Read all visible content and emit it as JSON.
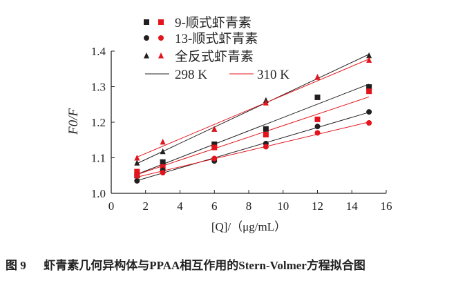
{
  "chart_data": {
    "type": "scatter",
    "title": "",
    "xlabel": "[Q]/（μg/mL）",
    "ylabel": "F0/F",
    "xlim": [
      0,
      16
    ],
    "ylim": [
      1.0,
      1.4
    ],
    "xticks": [
      "0",
      "2",
      "4",
      "6",
      "8",
      "10",
      "12",
      "14",
      "16"
    ],
    "yticks": [
      "1.0",
      "1.1",
      "1.2",
      "1.3",
      "1.4"
    ],
    "grid": false,
    "legend_position": "top-left",
    "x": [
      1.5,
      3,
      6,
      9,
      12,
      15
    ],
    "series": [
      {
        "name": "9-顺式虾青素",
        "temperature": "298 K",
        "marker": "square",
        "color": "#231f20",
        "values": [
          1.05,
          1.088,
          1.138,
          1.181,
          1.27,
          1.299
        ]
      },
      {
        "name": "9-顺式虾青素",
        "temperature": "310 K",
        "marker": "square",
        "color": "#e3141b",
        "values": [
          1.061,
          1.074,
          1.129,
          1.165,
          1.208,
          1.287
        ]
      },
      {
        "name": "13-顺式虾青素",
        "temperature": "298 K",
        "marker": "circle",
        "color": "#231f20",
        "values": [
          1.035,
          1.065,
          1.091,
          1.14,
          1.188,
          1.229
        ]
      },
      {
        "name": "13-顺式虾青素",
        "temperature": "310 K",
        "marker": "circle",
        "color": "#e3141b",
        "values": [
          1.049,
          1.058,
          1.098,
          1.131,
          1.17,
          1.198
        ]
      },
      {
        "name": "全反式虾青素",
        "temperature": "298 K",
        "marker": "triangle",
        "color": "#231f20",
        "values": [
          1.085,
          1.117,
          1.18,
          1.261,
          1.326,
          1.387
        ]
      },
      {
        "name": "全反式虾青素",
        "temperature": "310 K",
        "marker": "triangle",
        "color": "#e3141b",
        "values": [
          1.099,
          1.144,
          1.18,
          1.254,
          1.326,
          1.374
        ]
      }
    ],
    "legend": {
      "markers": [
        "9-顺式虾青素",
        "13-顺式虾青素",
        "全反式虾青素"
      ],
      "lines": [
        {
          "label": "298 K",
          "color": "#231f20"
        },
        {
          "label": "310 K",
          "color": "#e3141b"
        }
      ]
    },
    "fit": "linear"
  },
  "caption": "图 9　  虾青素几何异构体与PPAA相互作用的Stern-Volmer方程拟合图"
}
